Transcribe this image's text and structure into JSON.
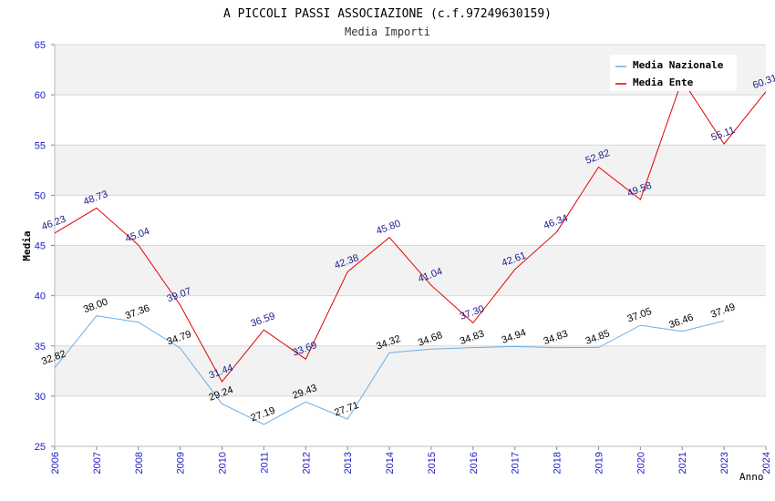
{
  "header": {
    "title": "A PICCOLI PASSI ASSOCIAZIONE (c.f.97249630159)",
    "subtitle": "Media Importi"
  },
  "colors": {
    "nazionale": "#6aaee8",
    "ente": "#e00000",
    "nazionale_labels": "#000000",
    "ente_labels": "#1a1a8c",
    "axis_ticks": "#1a1acc",
    "band": "#f2f2f2",
    "grid": "#d8d8d8"
  },
  "chart_data": {
    "type": "line",
    "title": "A PICCOLI PASSI ASSOCIAZIONE (c.f.97249630159)",
    "subtitle": "Media Importi",
    "xlabel": "Anno",
    "ylabel": "Media",
    "categories": [
      "2006",
      "2007",
      "2008",
      "2009",
      "2010",
      "2011",
      "2012",
      "2013",
      "2014",
      "2015",
      "2016",
      "2017",
      "2018",
      "2019",
      "2020",
      "2021",
      "2023",
      "2024"
    ],
    "y_ticks": [
      "25",
      "30",
      "35",
      "40",
      "45",
      "50",
      "55",
      "60",
      "65"
    ],
    "ylim": [
      25,
      65
    ],
    "grid": true,
    "legend_position": "top-right",
    "series": [
      {
        "name": "Media Nazionale",
        "values": [
          32.82,
          38.0,
          37.36,
          34.79,
          29.24,
          27.19,
          29.43,
          27.71,
          34.32,
          34.68,
          34.83,
          34.94,
          34.83,
          34.85,
          37.05,
          36.46,
          37.49,
          null
        ],
        "labels": [
          "32.82",
          "38.00",
          "37.36",
          "34.79",
          "29.24",
          "27.19",
          "29.43",
          "27.71",
          "34.32",
          "34.68",
          "34.83",
          "34.94",
          "34.83",
          "34.85",
          "37.05",
          "36.46",
          "37.49",
          ""
        ]
      },
      {
        "name": "Media Ente",
        "values": [
          46.23,
          48.73,
          45.04,
          39.07,
          31.44,
          36.59,
          33.69,
          42.38,
          45.8,
          41.04,
          37.3,
          42.61,
          46.34,
          52.82,
          49.58,
          61.5,
          55.11,
          60.31
        ],
        "labels": [
          "46.23",
          "48.73",
          "45.04",
          "39.07",
          "31.44",
          "36.59",
          "33.69",
          "42.38",
          "45.80",
          "41.04",
          "37.30",
          "42.61",
          "46.34",
          "52.82",
          "49.58",
          "",
          "55.11",
          "60.31"
        ]
      }
    ]
  }
}
